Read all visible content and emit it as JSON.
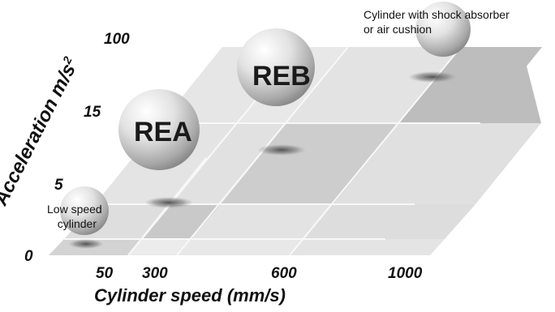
{
  "diagram": {
    "y_axis": {
      "label": "Acceleration m/s",
      "label_superscript": "2",
      "ticks": [
        "0",
        "5",
        "15",
        "100"
      ]
    },
    "x_axis": {
      "label": "Cylinder speed (mm/s)",
      "ticks": [
        "50",
        "300",
        "600",
        "1000"
      ]
    },
    "regions": {
      "low_speed": {
        "line1": "Low speed",
        "line2": "cylinder"
      },
      "rea": {
        "label": "REA"
      },
      "reb": {
        "label": "REB"
      },
      "shock": {
        "line1": "Cylinder with shock absorber",
        "line2": "or air cushion"
      }
    },
    "colors": {
      "grid_light": "#e6e6e6",
      "grid_mid": "#d9d9d9",
      "grid_dark": "#bdbdbd",
      "grid_line": "#f7f7f7",
      "sphere_light": "#ffffff",
      "sphere_dark": "#8a8a8a",
      "shadow": "#555555"
    }
  }
}
